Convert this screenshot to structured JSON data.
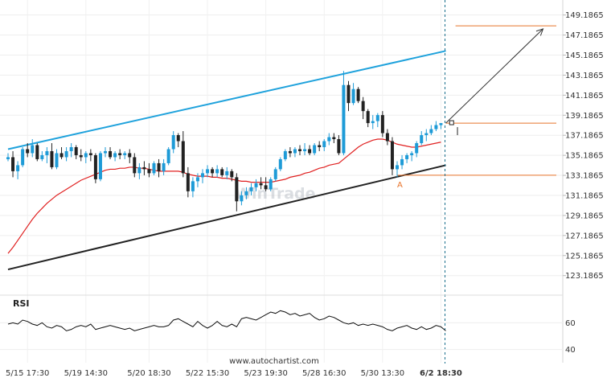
{
  "watermark": "WinTrade",
  "footer": "www.autochartist.com",
  "rsi_label": "RSI",
  "pattern_point_label": "A",
  "colors": {
    "bull": "#1e9bd7",
    "bear": "#222222",
    "upper_channel": "#1fa2dc",
    "lower_channel": "#222222",
    "moving_average": "#e02020",
    "level": "#e8742b",
    "rsi_line": "#111111",
    "projection_arrow": "#333333",
    "time_marker": "#1a6e8c"
  },
  "chart_data": [
    {
      "type": "candlestick",
      "y_ticks": [
        "149.1865",
        "147.1865",
        "145.1865",
        "143.1865",
        "141.1865",
        "139.1865",
        "137.1865",
        "135.1865",
        "133.1865",
        "131.1865",
        "129.1865",
        "127.1865",
        "125.1865",
        "123.1865"
      ],
      "ylim": [
        122.2,
        150.2
      ],
      "x_tick_labels": [
        "5/15 17:30",
        "5/19 14:30",
        "5/20 18:30",
        "5/22 15:30",
        "5/23 19:30",
        "5/28 16:30",
        "5/30 13:30",
        "6/2 18:30"
      ],
      "x_tick_index": [
        4,
        16,
        29,
        41,
        53,
        65,
        77,
        89
      ],
      "candles": [
        [
          134.8,
          135.4,
          134.6,
          135.0
        ],
        [
          135.0,
          135.6,
          133.0,
          133.6
        ],
        [
          133.6,
          134.6,
          132.8,
          134.2
        ],
        [
          134.2,
          136.0,
          134.0,
          135.8
        ],
        [
          135.8,
          136.4,
          135.0,
          135.4
        ],
        [
          135.4,
          136.8,
          135.0,
          136.2
        ],
        [
          136.2,
          136.4,
          134.6,
          134.8
        ],
        [
          134.8,
          135.6,
          134.6,
          135.2
        ],
        [
          135.2,
          136.0,
          134.4,
          135.6
        ],
        [
          135.6,
          136.4,
          133.8,
          134.0
        ],
        [
          134.0,
          135.8,
          133.8,
          135.4
        ],
        [
          135.4,
          136.0,
          134.8,
          135.0
        ],
        [
          135.0,
          136.0,
          134.6,
          135.6
        ],
        [
          135.6,
          136.4,
          135.0,
          136.0
        ],
        [
          136.0,
          136.2,
          134.8,
          135.2
        ],
        [
          135.2,
          135.8,
          134.6,
          135.0
        ],
        [
          135.0,
          135.6,
          134.4,
          135.4
        ],
        [
          135.4,
          135.8,
          134.6,
          135.2
        ],
        [
          135.2,
          135.4,
          132.4,
          132.8
        ],
        [
          132.8,
          135.6,
          132.6,
          135.4
        ],
        [
          135.4,
          136.0,
          135.0,
          135.6
        ],
        [
          135.6,
          136.0,
          134.8,
          135.0
        ],
        [
          135.0,
          135.6,
          134.6,
          135.4
        ],
        [
          135.4,
          135.8,
          134.8,
          135.2
        ],
        [
          135.2,
          135.6,
          134.8,
          135.4
        ],
        [
          135.4,
          135.8,
          134.4,
          135.0
        ],
        [
          135.0,
          135.4,
          133.0,
          133.4
        ],
        [
          133.4,
          134.4,
          132.8,
          134.0
        ],
        [
          134.0,
          134.6,
          133.2,
          133.8
        ],
        [
          133.8,
          134.4,
          133.0,
          133.4
        ],
        [
          133.4,
          134.6,
          133.2,
          134.4
        ],
        [
          134.4,
          134.8,
          133.0,
          133.6
        ],
        [
          133.6,
          134.8,
          133.2,
          134.4
        ],
        [
          134.4,
          136.0,
          134.2,
          135.8
        ],
        [
          135.8,
          137.6,
          135.4,
          137.2
        ],
        [
          137.2,
          137.4,
          136.0,
          136.6
        ],
        [
          136.6,
          137.6,
          133.0,
          133.4
        ],
        [
          133.4,
          134.0,
          131.0,
          131.6
        ],
        [
          131.6,
          133.0,
          131.0,
          132.6
        ],
        [
          132.6,
          133.4,
          132.0,
          133.0
        ],
        [
          133.0,
          133.8,
          132.4,
          133.4
        ],
        [
          133.4,
          134.2,
          133.0,
          133.8
        ],
        [
          133.8,
          134.0,
          133.0,
          133.4
        ],
        [
          133.4,
          134.2,
          133.0,
          133.8
        ],
        [
          133.8,
          134.0,
          133.0,
          133.2
        ],
        [
          133.2,
          134.0,
          132.8,
          133.6
        ],
        [
          133.6,
          133.8,
          132.6,
          133.0
        ],
        [
          133.0,
          133.4,
          129.6,
          130.6
        ],
        [
          130.6,
          131.6,
          130.2,
          131.2
        ],
        [
          131.2,
          132.0,
          130.8,
          131.6
        ],
        [
          131.6,
          132.4,
          131.2,
          132.0
        ],
        [
          132.0,
          132.8,
          131.6,
          132.4
        ],
        [
          132.4,
          133.0,
          131.8,
          132.2
        ],
        [
          132.2,
          133.0,
          131.6,
          131.8
        ],
        [
          131.8,
          133.0,
          131.6,
          132.8
        ],
        [
          132.8,
          134.0,
          132.6,
          133.8
        ],
        [
          133.8,
          135.0,
          133.6,
          134.8
        ],
        [
          134.8,
          135.8,
          134.6,
          135.6
        ],
        [
          135.6,
          136.0,
          135.0,
          135.4
        ],
        [
          135.4,
          136.0,
          135.0,
          135.8
        ],
        [
          135.8,
          136.2,
          135.2,
          135.6
        ],
        [
          135.6,
          136.4,
          135.2,
          135.8
        ],
        [
          135.8,
          136.2,
          135.2,
          135.4
        ],
        [
          135.4,
          136.4,
          135.2,
          136.2
        ],
        [
          136.2,
          136.6,
          135.6,
          136.0
        ],
        [
          136.0,
          136.8,
          135.6,
          136.6
        ],
        [
          136.6,
          137.4,
          136.2,
          137.0
        ],
        [
          137.0,
          137.4,
          136.4,
          136.8
        ],
        [
          136.8,
          137.2,
          135.2,
          135.4
        ],
        [
          135.4,
          143.6,
          135.2,
          142.2
        ],
        [
          142.2,
          142.6,
          139.6,
          140.4
        ],
        [
          140.4,
          142.4,
          140.2,
          141.8
        ],
        [
          141.8,
          142.0,
          140.4,
          140.6
        ],
        [
          140.6,
          141.0,
          138.8,
          139.6
        ],
        [
          139.6,
          139.8,
          138.0,
          138.4
        ],
        [
          138.4,
          139.2,
          137.8,
          138.6
        ],
        [
          138.6,
          139.4,
          138.0,
          139.2
        ],
        [
          139.2,
          139.6,
          137.0,
          137.4
        ],
        [
          137.4,
          137.8,
          136.2,
          136.6
        ],
        [
          136.6,
          137.0,
          133.2,
          133.8
        ],
        [
          133.8,
          134.6,
          133.0,
          134.2
        ],
        [
          134.2,
          135.2,
          133.8,
          134.8
        ],
        [
          134.8,
          135.4,
          134.4,
          135.2
        ],
        [
          135.2,
          135.6,
          134.6,
          135.4
        ],
        [
          135.4,
          136.6,
          135.0,
          136.4
        ],
        [
          136.4,
          137.6,
          136.2,
          137.2
        ],
        [
          137.2,
          137.8,
          136.6,
          137.4
        ],
        [
          137.4,
          138.2,
          137.2,
          137.8
        ],
        [
          137.8,
          138.6,
          137.6,
          138.2
        ],
        [
          138.2,
          138.4,
          137.8,
          138.4
        ]
      ],
      "moving_average": [
        125.4,
        126.0,
        126.7,
        127.4,
        128.1,
        128.8,
        129.4,
        129.9,
        130.4,
        130.8,
        131.2,
        131.5,
        131.8,
        132.1,
        132.4,
        132.7,
        132.9,
        133.1,
        133.3,
        133.5,
        133.7,
        133.8,
        133.8,
        133.9,
        133.9,
        134.0,
        134.0,
        133.9,
        133.9,
        133.8,
        133.7,
        133.6,
        133.6,
        133.6,
        133.6,
        133.6,
        133.5,
        133.3,
        133.2,
        133.1,
        133.1,
        133.1,
        133.0,
        133.0,
        132.9,
        132.9,
        132.8,
        132.7,
        132.6,
        132.6,
        132.5,
        132.5,
        132.5,
        132.5,
        132.5,
        132.6,
        132.7,
        132.8,
        133.0,
        133.1,
        133.2,
        133.4,
        133.5,
        133.7,
        133.9,
        134.0,
        134.2,
        134.3,
        134.4,
        134.8,
        135.2,
        135.6,
        136.0,
        136.3,
        136.5,
        136.7,
        136.8,
        136.8,
        136.7,
        136.5,
        136.3,
        136.2,
        136.1,
        136.0,
        136.0,
        136.1,
        136.2,
        136.3,
        136.4,
        136.5
      ],
      "upper_channel": {
        "from": [
          0,
          135.8
        ],
        "to": [
          90,
          145.6
        ]
      },
      "lower_channel": {
        "from": [
          0,
          123.8
        ],
        "to": [
          90,
          134.2
        ]
      },
      "levels": [
        {
          "y": 148.1,
          "from_index": 92
        },
        {
          "y": 138.4,
          "from_index": 90
        },
        {
          "y": 133.2,
          "from_index": 80
        }
      ],
      "projection": {
        "from": [
          90,
          138.4
        ],
        "to": [
          110,
          147.8
        ]
      },
      "pattern_point": {
        "index": 80.5,
        "y": 132.8
      },
      "time_marker_index": 90
    },
    {
      "type": "line",
      "name": "RSI",
      "y_ticks": [
        60,
        40
      ],
      "ylim": [
        32,
        80
      ],
      "values": [
        59,
        60,
        59,
        62,
        61,
        59,
        58,
        60,
        57,
        56,
        58,
        57,
        54,
        55,
        57,
        58,
        57,
        59,
        55,
        56,
        57,
        58,
        57,
        56,
        55,
        56,
        54,
        55,
        56,
        57,
        58,
        57,
        57,
        58,
        62,
        63,
        61,
        59,
        57,
        61,
        58,
        56,
        58,
        61,
        58,
        57,
        59,
        57,
        63,
        64,
        63,
        62,
        64,
        66,
        68,
        67,
        69,
        68,
        66,
        67,
        65,
        66,
        67,
        64,
        62,
        63,
        65,
        64,
        62,
        60,
        59,
        60,
        58,
        59,
        58,
        59,
        58,
        57,
        55,
        54,
        56,
        57,
        58,
        56,
        55,
        57,
        55,
        56,
        58,
        57,
        54
      ]
    }
  ]
}
